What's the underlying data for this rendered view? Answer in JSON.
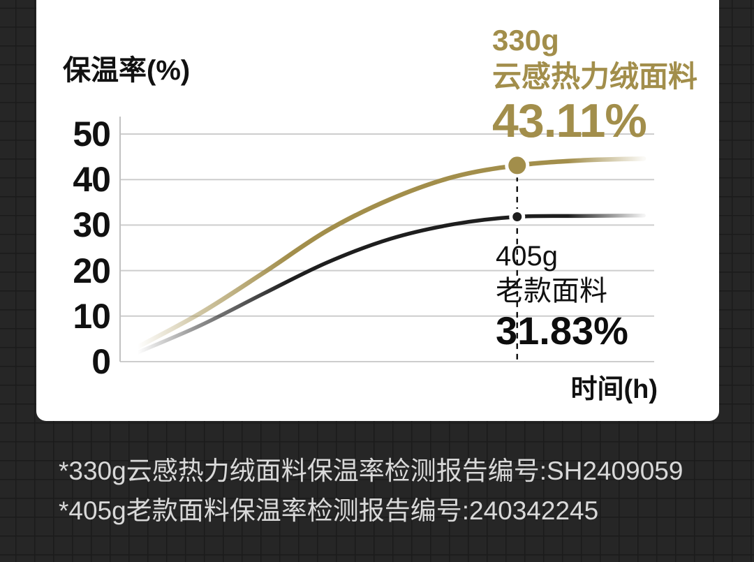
{
  "page": {
    "background_color": "#262626",
    "card_color": "#ffffff"
  },
  "chart_data": {
    "type": "line",
    "title": "",
    "ylabel": "保温率(%)",
    "xlabel": "时间(h)",
    "y_ticks": [
      50,
      40,
      30,
      20,
      10,
      0
    ],
    "y_max": 50,
    "grid": true,
    "grid_color": "#cdcdcd",
    "axis_color": "#c2c2c2",
    "legend_position": "annotations-on-chart",
    "series": [
      {
        "name": "330g云感热力绒面料",
        "color": "#a28e4b",
        "values": [
          3.2,
          10.7,
          19.6,
          28.8,
          35.7,
          40.6,
          43.11,
          44.2,
          44.6
        ],
        "marker_index": 6,
        "marker_radius": 15,
        "label_line1": "330g",
        "label_line2": "云感热力绒面料",
        "value_label": "43.11%"
      },
      {
        "name": "405g老款面料",
        "color": "#1e1e1e",
        "values": [
          2.0,
          8.0,
          15.0,
          21.8,
          27.0,
          30.2,
          31.83,
          32.0,
          32.1
        ],
        "marker_index": 6,
        "marker_radius": 9,
        "label_line1": "405g",
        "label_line2": "老款面料",
        "value_label": "31.83%"
      }
    ]
  },
  "footnotes": [
    "*330g云感热力绒面料保温率检测报告编号:SH2409059",
    "*405g老款面料保温率检测报告编号:240342245"
  ]
}
